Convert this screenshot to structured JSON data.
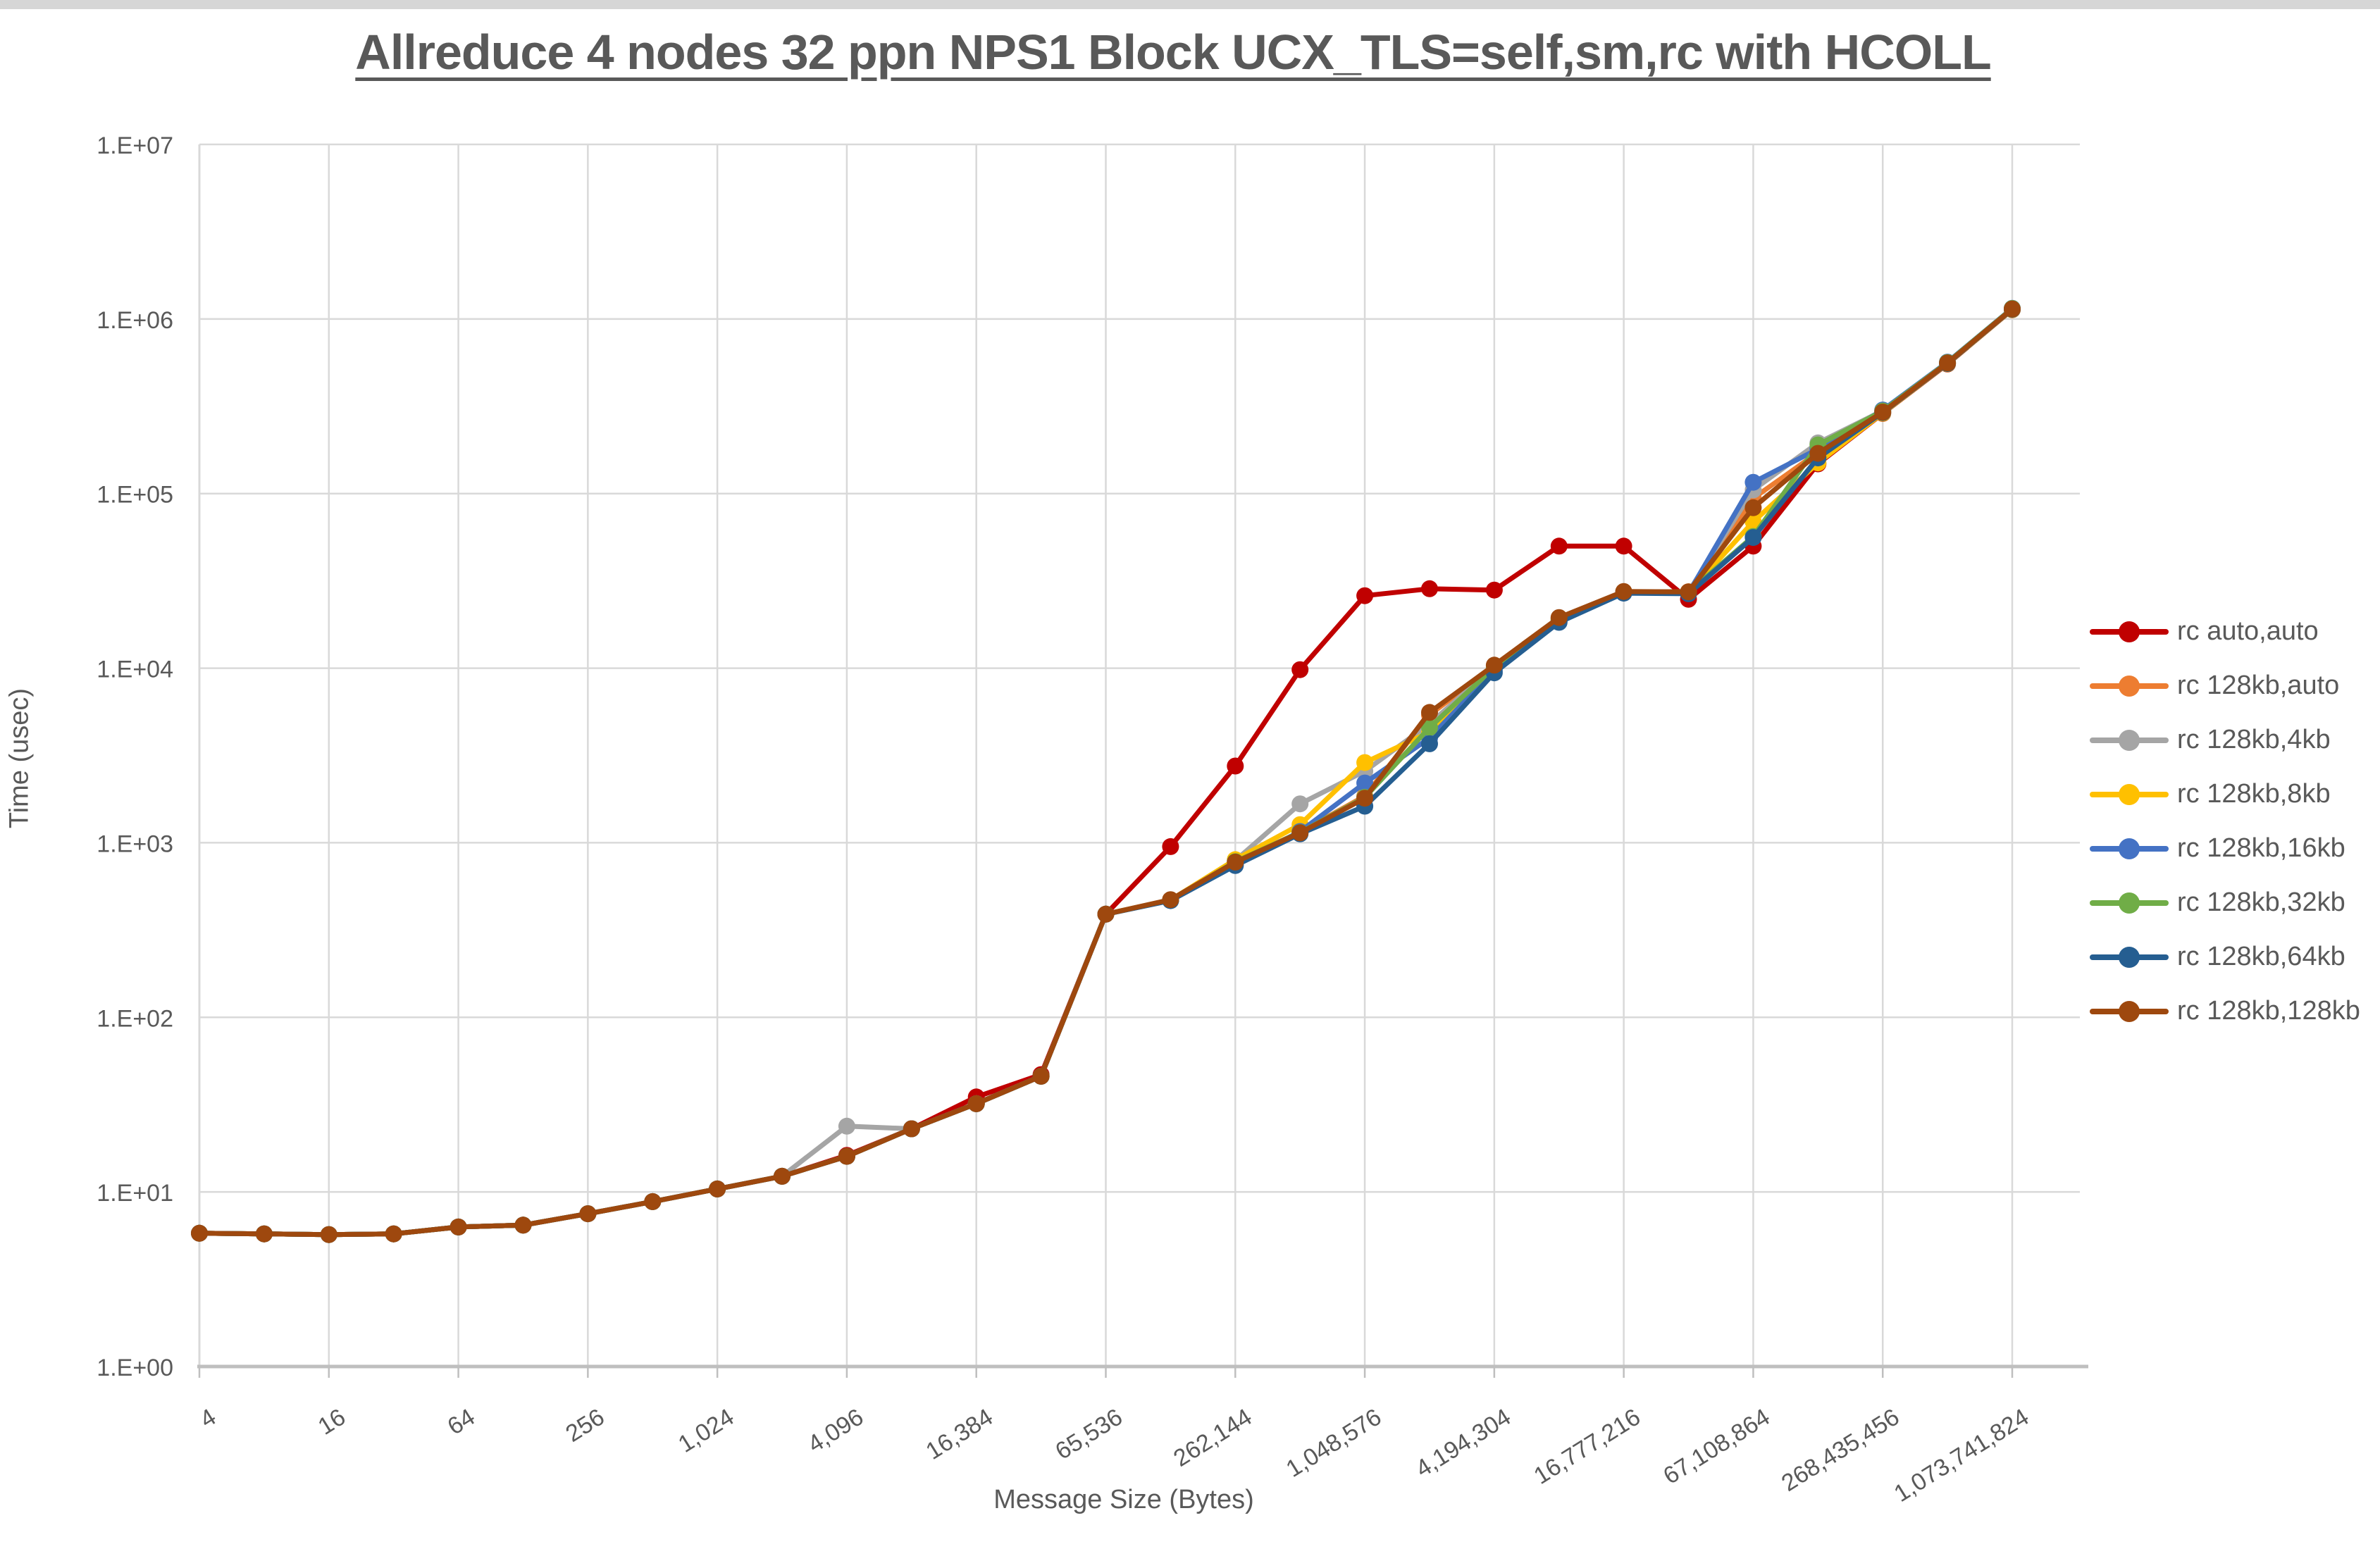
{
  "window": {
    "top_strip": true
  },
  "chart_data": {
    "type": "line",
    "title": "Allreduce 4 nodes 32 ppn NPS1 Block UCX_TLS=self,sm,rc with HCOLL",
    "xlabel": "Message Size (Bytes)",
    "ylabel": "Time (usec)",
    "x_scale": "log-category-powers-of-2",
    "y_scale": "log10",
    "ylim": [
      1,
      10000000
    ],
    "grid": true,
    "legend_position": "right",
    "y_tick_labels": [
      "1.E+00",
      "1.E+01",
      "1.E+02",
      "1.E+03",
      "1.E+04",
      "1.E+05",
      "1.E+06",
      "1.E+07"
    ],
    "x_tick_labels": [
      "4",
      "16",
      "64",
      "256",
      "1,024",
      "4,096",
      "16,384",
      "65,536",
      "262,144",
      "1,048,576",
      "4,194,304",
      "16,777,216",
      "67,108,864",
      "268,435,456",
      "1,073,741,824"
    ],
    "x_categories": [
      4,
      8,
      16,
      32,
      64,
      128,
      256,
      512,
      1024,
      2048,
      4096,
      8192,
      16384,
      32768,
      65536,
      131072,
      262144,
      524288,
      1048576,
      2097152,
      4194304,
      8388608,
      16777216,
      33554432,
      67108864,
      134217728,
      268435456,
      536870912,
      1073741824
    ],
    "colors": {
      "grid": "#d9d9d9",
      "axis": "#bfbfbf",
      "text": "#595959",
      "background": "#ffffff"
    },
    "series": [
      {
        "name": "rc auto,auto",
        "color": "#C00000",
        "values": [
          5.8,
          5.75,
          5.7,
          5.75,
          6.3,
          6.45,
          7.5,
          8.8,
          10.4,
          12.3,
          16.2,
          23,
          35,
          47,
          390,
          950,
          2750,
          9800,
          26000,
          28500,
          28000,
          50000,
          50000,
          24800,
          50000,
          148000,
          288000,
          552000,
          1130000
        ]
      },
      {
        "name": "rc 128kb,auto",
        "color": "#ED7D31",
        "values": [
          5.8,
          5.75,
          5.7,
          5.75,
          6.3,
          6.45,
          7.5,
          8.8,
          10.4,
          12.3,
          16,
          23,
          32,
          46,
          390,
          470,
          780,
          1150,
          1850,
          5400,
          10300,
          19300,
          27400,
          27400,
          94000,
          172000,
          295000,
          558000,
          1140000
        ]
      },
      {
        "name": "rc 128kb,4kb",
        "color": "#A5A5A5",
        "values": [
          5.8,
          5.75,
          5.7,
          5.75,
          6.3,
          6.45,
          7.5,
          8.8,
          10.4,
          12.3,
          23.8,
          23,
          32,
          46,
          390,
          470,
          790,
          1670,
          2570,
          4800,
          10200,
          19000,
          27300,
          27300,
          105000,
          195000,
          298000,
          561000,
          1146000
        ]
      },
      {
        "name": "rc 128kb,8kb",
        "color": "#FFC000",
        "values": [
          5.8,
          5.75,
          5.7,
          5.75,
          6.3,
          6.45,
          7.5,
          8.8,
          10.4,
          12.3,
          16,
          23,
          32,
          46,
          390,
          470,
          800,
          1270,
          2880,
          4300,
          10000,
          18800,
          27100,
          27000,
          69000,
          150000,
          289000,
          554000,
          1132000
        ]
      },
      {
        "name": "rc 128kb,16kb",
        "color": "#4472C4",
        "values": [
          5.8,
          5.75,
          5.7,
          5.75,
          6.3,
          6.45,
          7.5,
          8.8,
          10.4,
          12.3,
          16,
          23,
          32,
          46,
          390,
          468,
          745,
          1160,
          2200,
          3980,
          9700,
          18600,
          27200,
          26900,
          116000,
          180000,
          301000,
          566000,
          1151000
        ]
      },
      {
        "name": "rc 128kb,32kb",
        "color": "#70AD47",
        "values": [
          5.8,
          5.75,
          5.7,
          5.75,
          6.3,
          6.45,
          7.5,
          8.8,
          10.4,
          12.3,
          16,
          23,
          32,
          46,
          390,
          468,
          780,
          1145,
          1820,
          4570,
          10100,
          19100,
          27350,
          27200,
          56800,
          190000,
          297000,
          563000,
          1148000
        ]
      },
      {
        "name": "rc 128kb,64kb",
        "color": "#255E91",
        "values": [
          5.8,
          5.75,
          5.7,
          5.75,
          6.3,
          6.45,
          7.5,
          8.8,
          10.4,
          12.3,
          16,
          23,
          32,
          46,
          390,
          466,
          740,
          1125,
          1620,
          3690,
          9400,
          18300,
          26900,
          26700,
          56000,
          160000,
          291000,
          556000,
          1136000
        ]
      },
      {
        "name": "rc 128kb,128kb",
        "color": "#9E480E",
        "values": [
          5.8,
          5.75,
          5.7,
          5.75,
          6.3,
          6.45,
          7.5,
          8.8,
          10.4,
          12.3,
          16,
          23,
          32,
          46,
          390,
          472,
          775,
          1140,
          1800,
          5580,
          10400,
          19500,
          27500,
          27350,
          83000,
          170000,
          293000,
          560000,
          1142000
        ]
      }
    ]
  }
}
